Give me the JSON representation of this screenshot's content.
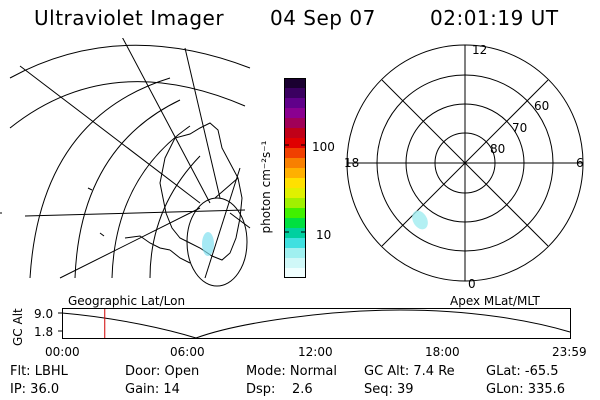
{
  "header": {
    "title": "Ultraviolet Imager",
    "date": "04 Sep 07",
    "time": "02:01:19 UT"
  },
  "colorbar": {
    "unit_label": "photon cm⁻²s⁻¹",
    "tick_labels": [
      "100",
      "10"
    ],
    "colors": [
      "#1a0030",
      "#3a0060",
      "#60008a",
      "#8a0090",
      "#a00058",
      "#c00018",
      "#e00000",
      "#f04000",
      "#f88000",
      "#ffb000",
      "#ffe000",
      "#e0f000",
      "#a0f000",
      "#40f000",
      "#00e040",
      "#00d0a0",
      "#40e0e0",
      "#a0f0f0",
      "#d0f8f8",
      "#f0ffff"
    ]
  },
  "left_map": {
    "caption": "Geographic Lat/Lon",
    "aurora_color": "#80e0f0"
  },
  "polar_plot": {
    "caption": "Apex MLat/MLT",
    "mlt_labels": {
      "top": "12",
      "left": "18",
      "right": "6",
      "bottom": "0"
    },
    "lat_labels": [
      "60",
      "70",
      "80"
    ],
    "aurora_color": "#a0ecf0"
  },
  "orbit_plot": {
    "ylabel": "GC Alt",
    "y_ticks": [
      "9.0",
      "1.8"
    ],
    "x_ticks": [
      "00:00",
      "06:00",
      "12:00",
      "18:00",
      "23:59"
    ],
    "marker_color": "#d00000",
    "current_time_hours": 2.02
  },
  "info": {
    "flt": "Flt: LBHL",
    "ip": "IP: 36.0",
    "door": "Door: Open",
    "gain": "Gain: 14",
    "mode": "Mode: Normal",
    "dsp": "Dsp:    2.6",
    "gc_alt": "GC Alt: 7.4 Re",
    "seq": "Seq: 39",
    "glat": "GLat: -65.5",
    "glon": "GLon: 335.6"
  }
}
